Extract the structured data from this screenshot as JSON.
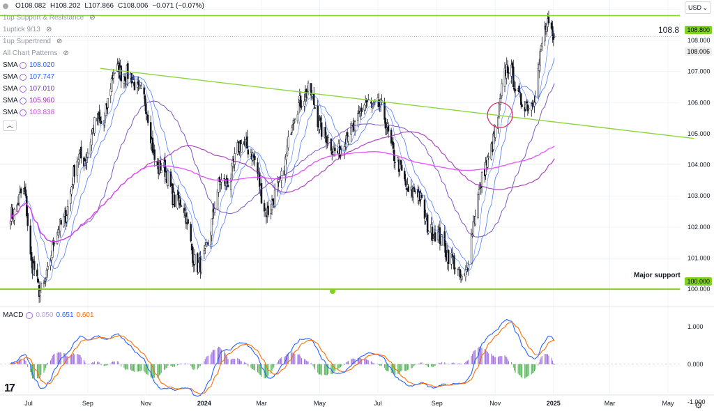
{
  "currency": {
    "label": "USD",
    "caret": "⌄"
  },
  "ohlc": {
    "dot_icon": "symbol-dot",
    "open": "O108.082",
    "high": "H108.202",
    "low": "L107.866",
    "close": "C108.006",
    "change": "−0.071 (−0.07%)"
  },
  "indicators": [
    {
      "label": "1up Support & Resistance"
    },
    {
      "label": "1uptick 9/13"
    },
    {
      "label": "1up Supertrend"
    },
    {
      "label": "All Chart Patterns"
    }
  ],
  "smas": [
    {
      "name": "SMA",
      "value": "108.020",
      "color": "#2962ff"
    },
    {
      "name": "SMA",
      "value": "107.747",
      "color": "#2962ff"
    },
    {
      "name": "SMA",
      "value": "107.010",
      "color": "#673ab7"
    },
    {
      "name": "SMA",
      "value": "105.960",
      "color": "#9c27b0"
    },
    {
      "name": "SMA",
      "value": "103.838",
      "color": "#e040fb"
    }
  ],
  "price_labels": {
    "resistance_text": "108.8",
    "resistance_badge": "108.800",
    "last_price_badge": "108.006",
    "support_badge": "100.000",
    "support_text": "Major support"
  },
  "macd": {
    "label": "MACD",
    "v1": "0.050",
    "v2": "0.651",
    "v3": "0.601",
    "v1_color": "#b39ddb",
    "v2_color": "#2962ff",
    "v3_color": "#ff6d00"
  },
  "time_labels": [
    "Jul",
    "Sep",
    "Nov",
    "2024",
    "Mar",
    "May",
    "Jul",
    "Sep",
    "Nov",
    "2025",
    "Mar",
    "May"
  ],
  "chart_data": {
    "type": "candlestick",
    "main_axis": {
      "ylim": [
        99.6,
        109.3
      ],
      "ticks": [
        100.0,
        101.0,
        102.0,
        103.0,
        104.0,
        105.0,
        106.0,
        107.0,
        108.0,
        109.0
      ]
    },
    "macd_axis": {
      "ylim": [
        -1.15,
        1.2
      ],
      "ticks": [
        -1.0,
        0.0,
        1.0
      ]
    },
    "key_points": [
      [
        "2023-06-12",
        102.5
      ],
      [
        "2023-06-26",
        103.0
      ],
      [
        "2023-07-05",
        100.9
      ],
      [
        "2023-07-13",
        99.8
      ],
      [
        "2023-07-31",
        101.8
      ],
      [
        "2023-08-25",
        104.2
      ],
      [
        "2023-09-14",
        105.4
      ],
      [
        "2023-10-03",
        107.1
      ],
      [
        "2023-10-25",
        106.5
      ],
      [
        "2023-11-14",
        104.0
      ],
      [
        "2023-12-04",
        102.9
      ],
      [
        "2023-12-28",
        100.7
      ],
      [
        "2024-01-18",
        103.3
      ],
      [
        "2024-02-14",
        104.7
      ],
      [
        "2024-03-08",
        102.6
      ],
      [
        "2024-04-16",
        106.3
      ],
      [
        "2024-05-16",
        104.5
      ],
      [
        "2024-06-26",
        106.0
      ],
      [
        "2024-08-05",
        103.2
      ],
      [
        "2024-09-03",
        101.6
      ],
      [
        "2024-09-27",
        100.4
      ],
      [
        "2024-10-23",
        104.0
      ],
      [
        "2024-11-14",
        107.0
      ],
      [
        "2024-12-05",
        105.8
      ],
      [
        "2024-12-27",
        108.4
      ],
      [
        "2025-01-02",
        108.1
      ]
    ],
    "resistance_line": 108.8,
    "support_line": 100.0,
    "trend_line": [
      [
        "2023-09-14",
        107.1
      ],
      [
        "2025-05-28",
        104.85
      ]
    ],
    "highlight_circle": [
      "2024-11-06",
      105.6
    ]
  }
}
